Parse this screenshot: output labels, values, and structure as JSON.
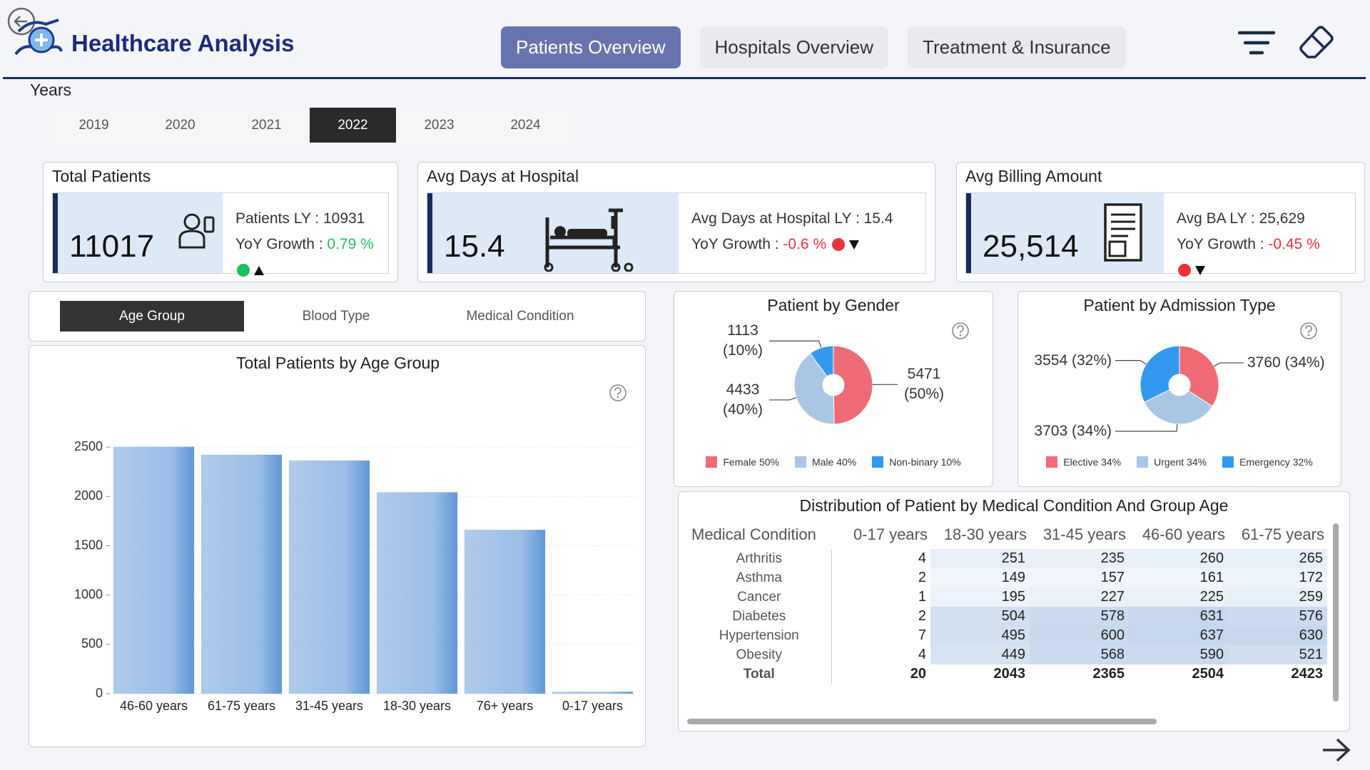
{
  "header": {
    "title": "Healthcare Analysis",
    "nav": {
      "items": [
        "Patients Overview",
        "Hospitals Overview",
        "Treatment & Insurance"
      ],
      "active": "Patients Overview"
    }
  },
  "years": {
    "label": "Years",
    "items": [
      "2019",
      "2020",
      "2021",
      "2022",
      "2023",
      "2024"
    ],
    "selected": "2022"
  },
  "kpis": [
    {
      "title": "Total Patients",
      "value": 11017,
      "last_year": "Patients LY : 10931",
      "growth_label": "YoY Growth :",
      "growth": "0.79 %",
      "trend": "up",
      "color": "#1fbf5f"
    },
    {
      "title": "Avg Days at Hospital",
      "value": 15.4,
      "last_year": "Avg Days at Hospital LY : 15.4",
      "growth_label": "YoY Growth :",
      "growth": "-0.6 %",
      "trend": "down",
      "color": "#e8323c"
    },
    {
      "title": "Avg Billing Amount",
      "value": "25,514",
      "last_year": "Avg BA LY : 25,629",
      "growth_label": "YoY Growth :",
      "growth": "-0.45 %",
      "trend": "down",
      "color": "#e8323c"
    }
  ],
  "tabs": {
    "items": [
      "Age Group",
      "Blood Type",
      "Medical Condition"
    ],
    "active": "Age Group"
  },
  "chart_data": [
    {
      "type": "bar",
      "title": "Total Patients by Age Group",
      "categories": [
        "46-60 years",
        "61-75 years",
        "31-45 years",
        "18-30 years",
        "76+ years",
        "0-17 years"
      ],
      "values": [
        2504,
        2423,
        2365,
        2043,
        1662,
        20
      ],
      "color": "#5f97d6",
      "ylim": [
        0,
        3000
      ],
      "yticks": [
        0,
        500,
        1000,
        1500,
        2000,
        2500
      ],
      "grid": true
    },
    {
      "type": "pie",
      "title": "Patient by Gender",
      "categories": [
        "Female 50%",
        "Male 40%",
        "Non-binary 10%"
      ],
      "values": [
        5471,
        4433,
        1113
      ],
      "value_labels": [
        "5471 (50%)",
        "4433 (40%)",
        "1113 (10%)"
      ],
      "colors": [
        "#ee6b75",
        "#a9c6e4",
        "#3399f0"
      ]
    },
    {
      "type": "pie",
      "title": "Patient by Admission Type",
      "categories": [
        "Elective 34%",
        "Urgent 34%",
        "Emergency 32%"
      ],
      "values": [
        3760,
        3703,
        3554
      ],
      "value_labels": [
        "3760 (34%)",
        "3703 (34%)",
        "3554 (32%)"
      ],
      "colors": [
        "#ee6b75",
        "#a9c6e4",
        "#3399f0"
      ]
    }
  ],
  "table": {
    "title": "Distribution of Patient by Medical Condition And Group Age",
    "columns": [
      "Medical Condition",
      "0-17 years",
      "18-30 years",
      "31-45 years",
      "46-60 years",
      "61-75 years"
    ],
    "rows": [
      [
        "Arthritis",
        4,
        251,
        235,
        260,
        265
      ],
      [
        "Asthma",
        2,
        149,
        157,
        161,
        172
      ],
      [
        "Cancer",
        1,
        195,
        227,
        225,
        259
      ],
      [
        "Diabetes",
        2,
        504,
        578,
        631,
        576
      ],
      [
        "Hypertension",
        7,
        495,
        600,
        637,
        630
      ],
      [
        "Obesity",
        4,
        449,
        568,
        590,
        521
      ]
    ],
    "total": [
      "Total",
      20,
      2043,
      2365,
      2504,
      2423
    ]
  }
}
